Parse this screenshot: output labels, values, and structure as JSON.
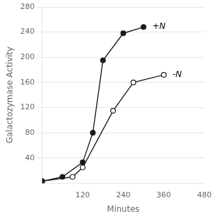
{
  "chart_data": {
    "type": "line",
    "xlabel": "Minutes",
    "ylabel": "Galactozymase Activity",
    "series": [
      {
        "x": [
          0,
          60,
          120,
          150,
          180,
          240,
          300
        ],
        "values": [
          3,
          10,
          33,
          80,
          195,
          238,
          248
        ],
        "color": "#1a1a1a",
        "marker": "circle"
      },
      {
        "x": [
          0,
          90,
          120,
          210,
          270,
          360
        ],
        "values": [
          3,
          10,
          25,
          115,
          160,
          172
        ],
        "color": "#1a1a1a",
        "marker": "open_circle"
      }
    ],
    "annotations": [
      {
        "text": "+N",
        "x": 310,
        "y": 248
      },
      {
        "text": "-N",
        "x": 370,
        "y": 172
      }
    ],
    "xlim": [
      0,
      480
    ],
    "ylim": [
      0,
      280
    ],
    "xticks": [
      120,
      240,
      360,
      480
    ],
    "yticks": [
      40,
      80,
      120,
      160,
      200,
      240,
      280
    ],
    "grid": "y"
  }
}
